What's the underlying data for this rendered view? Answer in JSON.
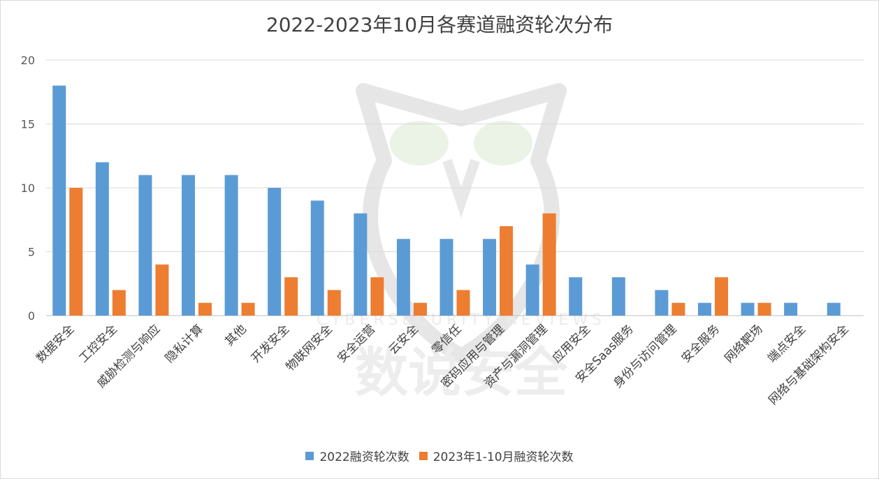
{
  "chart_data": {
    "type": "bar",
    "title": "2022-2023年10月各赛道融资轮次分布",
    "xlabel": "",
    "ylabel": "",
    "ylim": [
      0,
      20
    ],
    "yticks": [
      0,
      5,
      10,
      15,
      20
    ],
    "grid": true,
    "legend_position": "bottom",
    "categories": [
      "数据安全",
      "工控安全",
      "威胁检测与响应",
      "隐私计算",
      "其他",
      "开发安全",
      "物联网安全",
      "安全运营",
      "云安全",
      "零信任",
      "密码应用与管理",
      "资产与漏洞管理",
      "应用安全",
      "安全Saas服务",
      "身份与访问管理",
      "安全服务",
      "网络靶场",
      "端点安全",
      "网络与基础架构安全"
    ],
    "series": [
      {
        "name": "2022融资轮次数",
        "color": "#5b9bd5",
        "values": [
          18,
          12,
          11,
          11,
          11,
          10,
          9,
          8,
          6,
          6,
          6,
          4,
          3,
          3,
          2,
          1,
          1,
          1,
          1
        ]
      },
      {
        "name": "2023年1-10月融资轮次数",
        "color": "#ed7d31",
        "values": [
          10,
          2,
          4,
          1,
          1,
          3,
          2,
          3,
          1,
          2,
          7,
          8,
          0,
          0,
          1,
          3,
          1,
          0,
          0
        ]
      }
    ]
  },
  "watermark": {
    "text_en": "CYBERSECURITY REVIEWS",
    "text_cn": "数说安全",
    "icon": "owl-logo-icon"
  }
}
